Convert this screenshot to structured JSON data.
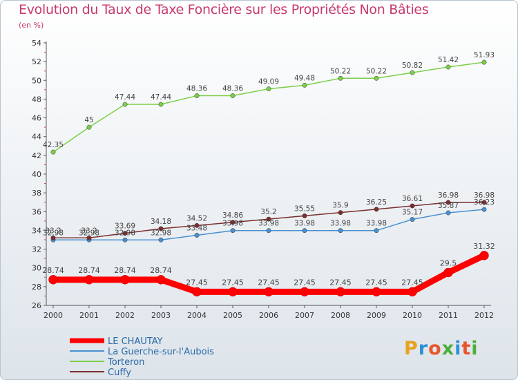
{
  "header": {
    "title": "Evolution du Taux de Taxe Foncière sur les Propriétés Non Bâties",
    "subtitle": "(en %)"
  },
  "logo": {
    "text": "Proxiti",
    "colors": [
      "#e8a21c",
      "#2f8fd6",
      "#e8562a",
      "#4cae3b",
      "#2f8fd6",
      "#e8562a",
      "#4cae3b"
    ]
  },
  "chart_data": {
    "type": "line",
    "x": [
      "2000",
      "2001",
      "2002",
      "2003",
      "2004",
      "2005",
      "2006",
      "2007",
      "2008",
      "2009",
      "2010",
      "2011",
      "2012"
    ],
    "ylim": [
      26,
      54
    ],
    "yticks": [
      26,
      28,
      30,
      32,
      34,
      36,
      38,
      40,
      42,
      44,
      46,
      48,
      50,
      52,
      54
    ],
    "grid": false,
    "legend_position": "bottom-left",
    "series": [
      {
        "name": "LE CHAUTAY",
        "color": "#ff0000",
        "values": [
          28.74,
          28.74,
          28.74,
          28.74,
          27.45,
          27.45,
          27.45,
          27.45,
          27.45,
          27.45,
          27.45,
          29.5,
          31.32
        ],
        "labels": [
          "28.74",
          "28.74",
          "28.74",
          "28.74",
          "27.45",
          "27.45",
          "27.45",
          "27.45",
          "27.45",
          "27.45",
          "27.45",
          "29.5",
          "31.32"
        ]
      },
      {
        "name": "La Guerche-sur-l'Aubois",
        "color": "#4a90d0",
        "values": [
          32.98,
          32.98,
          32.98,
          32.98,
          33.48,
          33.98,
          33.98,
          33.98,
          33.98,
          33.98,
          35.17,
          35.87,
          36.23
        ],
        "labels": [
          "32.98",
          "32.98",
          "32.98",
          "32.98",
          "33.48",
          "33.98",
          "33.98",
          "33.98",
          "33.98",
          "33.98",
          "35.17",
          "35.87",
          "36.23"
        ]
      },
      {
        "name": "Torteron",
        "color": "#7ccf48",
        "values": [
          42.35,
          45,
          47.44,
          47.44,
          48.36,
          48.36,
          49.09,
          49.48,
          50.22,
          50.22,
          50.82,
          51.42,
          51.93
        ],
        "labels": [
          "42.35",
          "45",
          "47.44",
          "47.44",
          "48.36",
          "48.36",
          "49.09",
          "49.48",
          "50.22",
          "50.22",
          "50.82",
          "51.42",
          "51.93"
        ]
      },
      {
        "name": "Cuffy",
        "color": "#7a2e2e",
        "values": [
          33.2,
          33.2,
          33.69,
          34.18,
          34.52,
          34.86,
          35.2,
          35.55,
          35.9,
          36.25,
          36.61,
          36.98,
          36.98
        ],
        "labels": [
          "33.2",
          "33.2",
          "33.69",
          "34.18",
          "34.52",
          "34.86",
          "35.2",
          "35.55",
          "35.9",
          "36.25",
          "36.61",
          "36.98",
          "36.98"
        ]
      }
    ]
  }
}
